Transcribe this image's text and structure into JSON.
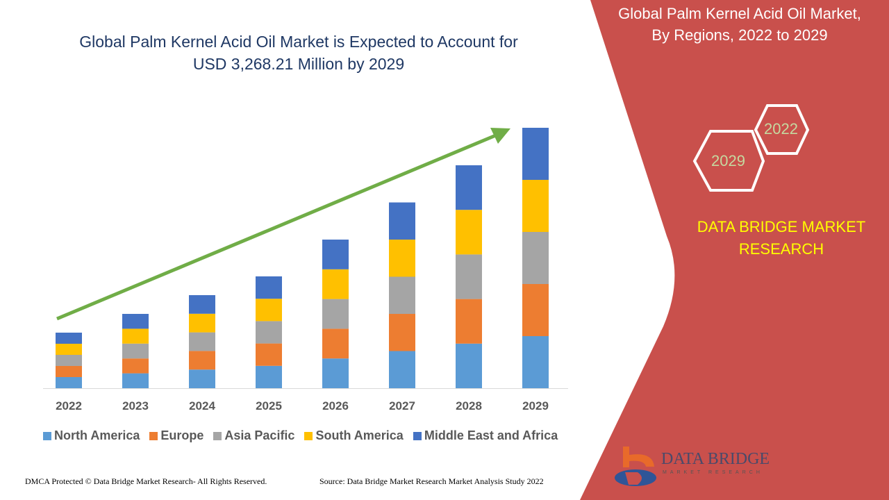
{
  "header": {
    "title_line1": "Global Palm Kernel Acid Oil Market is Expected to Account for",
    "title_line2": "USD 3,268.21 Million by 2029"
  },
  "side_panel": {
    "title_line1": "Global Palm Kernel Acid Oil Market,",
    "title_line2": "By Regions, 2022 to 2029",
    "hex_start": "2022",
    "hex_end": "2029",
    "brand_line1": "DATA BRIDGE MARKET",
    "brand_line2": "RESEARCH",
    "logo_text": "DATA BRIDGE",
    "logo_subtext": "MARKET RESEARCH",
    "panel_color": "#c9504c"
  },
  "footer": {
    "copyright": "DMCA Protected © Data Bridge Market Research- All Rights Reserved.",
    "source": "Source: Data Bridge Market Research Market Analysis Study 2022"
  },
  "chart_data": {
    "type": "bar",
    "stacked": true,
    "title": "",
    "xlabel": "",
    "ylabel": "",
    "y_axis_shown": false,
    "grid": false,
    "legend_position": "bottom",
    "trend_arrow": true,
    "trend_arrow_color": "#70ad47",
    "ylim": [
      0,
      380
    ],
    "categories": [
      "2022",
      "2023",
      "2024",
      "2025",
      "2026",
      "2027",
      "2028",
      "2029"
    ],
    "series": [
      {
        "name": "North America",
        "color": "#5b9bd5",
        "values": [
          16,
          21.4,
          26.8,
          32.2,
          42.8,
          53.5,
          64.2,
          75
        ]
      },
      {
        "name": "Europe",
        "color": "#ed7d31",
        "values": [
          16,
          21.4,
          26.8,
          32.2,
          42.8,
          53.5,
          64.2,
          75
        ]
      },
      {
        "name": "Asia Pacific",
        "color": "#a5a5a5",
        "values": [
          16,
          21.4,
          26.8,
          32.2,
          42.8,
          53.5,
          64.2,
          75
        ]
      },
      {
        "name": "South America",
        "color": "#ffc000",
        "values": [
          16,
          21.4,
          26.8,
          32.2,
          42.8,
          53.5,
          64.2,
          75
        ]
      },
      {
        "name": "Middle East and Africa",
        "color": "#4472c4",
        "values": [
          16,
          21.4,
          26.8,
          32.2,
          42.8,
          53.5,
          64.2,
          75
        ]
      }
    ]
  }
}
